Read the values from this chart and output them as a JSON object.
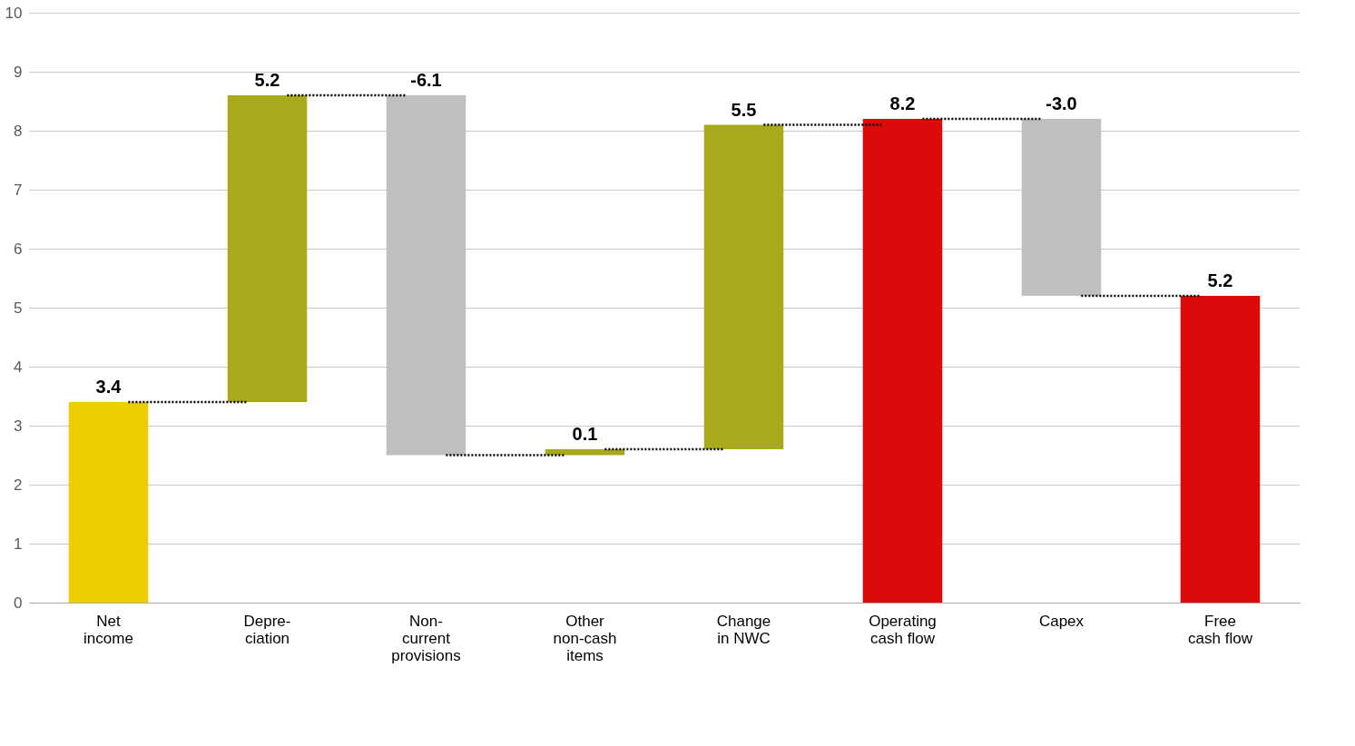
{
  "chart_data": {
    "type": "bar",
    "categories": [
      "Net\nincome",
      "Depre-\nciation",
      "Non-\ncurrent\nprovisions",
      "Other\nnon-cash\nitems",
      "Change\nin NWC",
      "Operating\ncash flow",
      "Capex",
      "Free\ncash flow"
    ],
    "values": [
      3.4,
      5.2,
      -6.1,
      0.1,
      5.5,
      8.2,
      -3.0,
      5.2
    ],
    "base": [
      0,
      3.4,
      8.6,
      2.5,
      2.6,
      0,
      8.2,
      0
    ],
    "colors": [
      "#eccd00",
      "#a9a91c",
      "#bfbfbf",
      "#a9a91c",
      "#a9a91c",
      "#dc0a0a",
      "#bfbfbf",
      "#dc0a0a"
    ],
    "value_labels": [
      "3.4",
      "5.2",
      "-6.1",
      "0.1",
      "5.5",
      "8.2",
      "-3.0",
      "5.2"
    ],
    "ylim": [
      0,
      10
    ],
    "yticks": [
      0,
      1,
      2,
      3,
      4,
      5,
      6,
      7,
      8,
      9,
      10
    ],
    "grid": "y",
    "legend": false
  }
}
